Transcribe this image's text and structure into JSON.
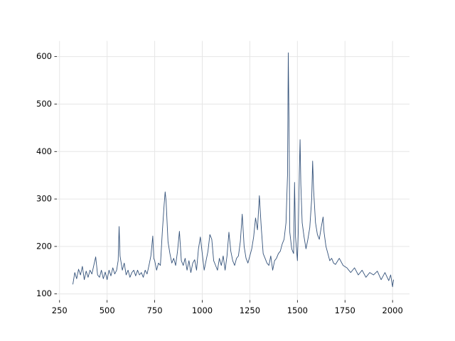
{
  "chart_data": {
    "type": "line",
    "x": [
      320,
      330,
      340,
      350,
      360,
      370,
      380,
      390,
      400,
      410,
      420,
      430,
      440,
      450,
      460,
      470,
      480,
      490,
      500,
      510,
      520,
      530,
      540,
      550,
      558,
      563,
      568,
      580,
      590,
      600,
      610,
      620,
      630,
      640,
      650,
      660,
      670,
      680,
      690,
      700,
      710,
      720,
      730,
      740,
      745,
      750,
      760,
      770,
      780,
      790,
      800,
      805,
      810,
      820,
      830,
      840,
      850,
      860,
      870,
      880,
      890,
      900,
      910,
      920,
      930,
      940,
      950,
      960,
      970,
      980,
      990,
      1000,
      1010,
      1020,
      1030,
      1040,
      1050,
      1060,
      1070,
      1080,
      1090,
      1100,
      1110,
      1120,
      1130,
      1140,
      1150,
      1160,
      1170,
      1180,
      1190,
      1200,
      1210,
      1220,
      1230,
      1240,
      1250,
      1260,
      1270,
      1280,
      1290,
      1300,
      1310,
      1320,
      1330,
      1340,
      1350,
      1360,
      1370,
      1380,
      1390,
      1400,
      1410,
      1420,
      1430,
      1440,
      1448,
      1452,
      1456,
      1460,
      1470,
      1480,
      1485,
      1490,
      1500,
      1505,
      1510,
      1514,
      1518,
      1525,
      1535,
      1545,
      1555,
      1565,
      1575,
      1580,
      1585,
      1595,
      1605,
      1615,
      1625,
      1635,
      1640,
      1650,
      1660,
      1670,
      1680,
      1690,
      1700,
      1720,
      1740,
      1760,
      1780,
      1800,
      1820,
      1840,
      1860,
      1880,
      1900,
      1920,
      1940,
      1960,
      1980,
      1990,
      2000,
      2005
    ],
    "series": [
      {
        "color": "#34527a",
        "values": [
          120,
          145,
          132,
          152,
          140,
          158,
          130,
          148,
          135,
          150,
          142,
          160,
          178,
          140,
          135,
          150,
          132,
          146,
          130,
          150,
          138,
          155,
          142,
          150,
          170,
          242,
          180,
          150,
          165,
          140,
          150,
          135,
          145,
          150,
          138,
          150,
          140,
          145,
          135,
          150,
          142,
          160,
          180,
          222,
          175,
          170,
          150,
          165,
          160,
          230,
          290,
          315,
          295,
          210,
          185,
          165,
          175,
          160,
          190,
          232,
          170,
          160,
          175,
          150,
          170,
          145,
          165,
          172,
          150,
          195,
          220,
          185,
          150,
          170,
          190,
          225,
          215,
          170,
          160,
          150,
          175,
          160,
          180,
          150,
          180,
          230,
          190,
          170,
          160,
          175,
          180,
          210,
          268,
          200,
          175,
          165,
          180,
          195,
          220,
          260,
          235,
          307,
          240,
          185,
          175,
          165,
          160,
          180,
          150,
          170,
          175,
          185,
          190,
          205,
          215,
          250,
          350,
          608,
          450,
          230,
          195,
          185,
          335,
          220,
          170,
          240,
          355,
          425,
          330,
          250,
          220,
          195,
          215,
          240,
          300,
          380,
          320,
          250,
          225,
          215,
          240,
          262,
          230,
          200,
          185,
          170,
          175,
          165,
          162,
          175,
          160,
          155,
          145,
          155,
          140,
          150,
          135,
          145,
          140,
          148,
          130,
          145,
          128,
          140,
          115,
          130
        ]
      }
    ],
    "xlim": [
      236,
      2089
    ],
    "ylim": [
      87,
      633
    ],
    "xticks": [
      250,
      500,
      750,
      1000,
      1250,
      1500,
      1750,
      2000
    ],
    "yticks": [
      100,
      200,
      300,
      400,
      500,
      600
    ],
    "grid": true
  }
}
